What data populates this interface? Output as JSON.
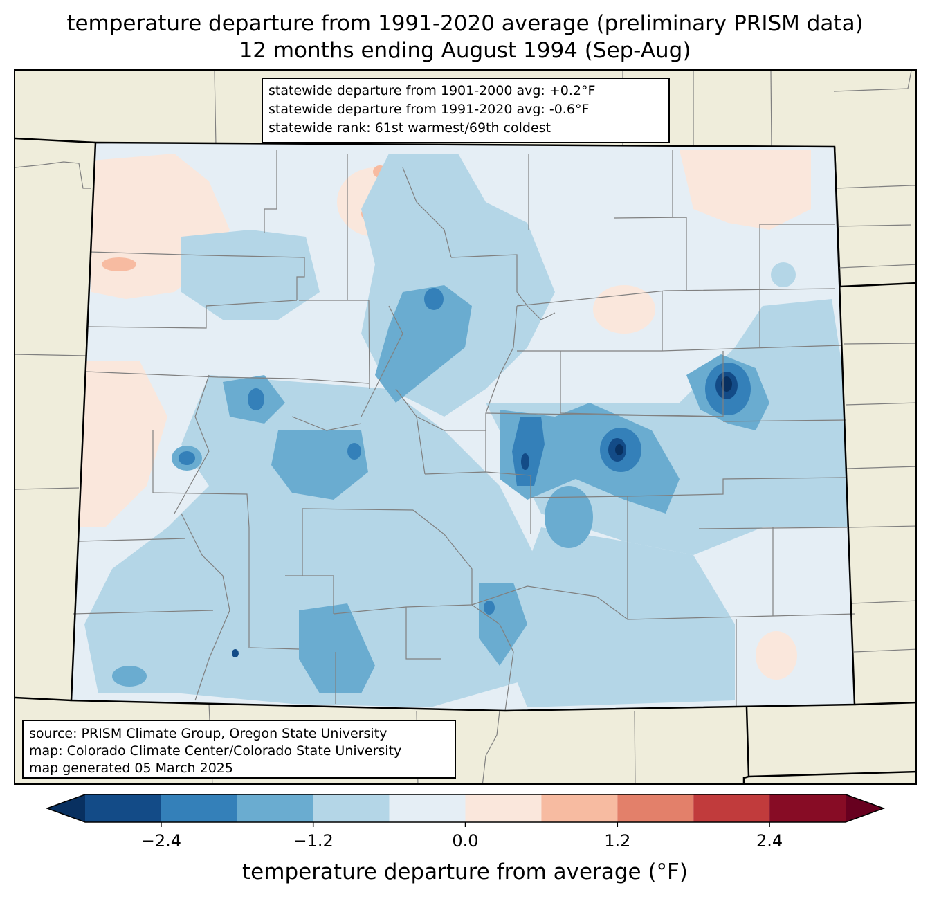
{
  "title": {
    "line1": "temperature departure from 1991-2020 average (preliminary PRISM data)",
    "line2": "12 months ending August 1994 (Sep-Aug)"
  },
  "stats": {
    "line1": "statewide departure from 1901-2000 avg: +0.2°F",
    "line2": "statewide departure from 1991-2020 avg: -0.6°F",
    "line3": "statewide rank: 61st warmest/69th coldest"
  },
  "source": {
    "line1": "source: PRISM Climate Group, Oregon State University",
    "line2": "map: Colorado Climate Center/Colorado State University",
    "line3": "map generated 05 March 2025"
  },
  "colorbar": {
    "label": "temperature departure from average (°F)",
    "ticks": [
      "−2.4",
      "−1.2",
      "0.0",
      "1.2",
      "2.4"
    ],
    "bins": [
      {
        "from": -3.0,
        "to": -2.4,
        "color": "#134b87"
      },
      {
        "from": -2.4,
        "to": -1.8,
        "color": "#3480b9"
      },
      {
        "from": -1.8,
        "to": -1.2,
        "color": "#6aacd0"
      },
      {
        "from": -1.2,
        "to": -0.6,
        "color": "#b4d6e7"
      },
      {
        "from": -0.6,
        "to": 0.0,
        "color": "#e5eef5"
      },
      {
        "from": 0.0,
        "to": 0.6,
        "color": "#fae7dc"
      },
      {
        "from": 0.6,
        "to": 1.2,
        "color": "#f7bba1"
      },
      {
        "from": 1.2,
        "to": 1.8,
        "color": "#e3806a"
      },
      {
        "from": 1.8,
        "to": 2.4,
        "color": "#c13b3c"
      },
      {
        "from": 2.4,
        "to": 3.0,
        "color": "#870c25"
      }
    ],
    "under_color": "#083060",
    "over_color": "#67001f"
  },
  "colors": {
    "land": "#efeddb",
    "state_border": "#000000",
    "county_border": "#808080"
  }
}
